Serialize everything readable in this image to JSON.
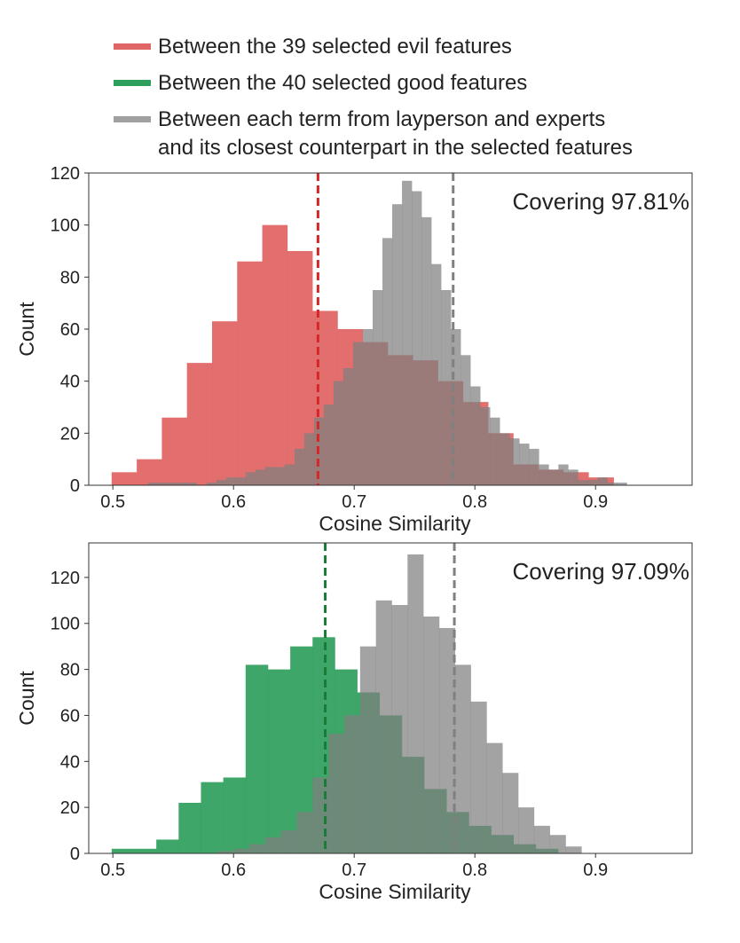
{
  "legend": {
    "items": [
      {
        "lines": [
          "Between the 39 selected evil features"
        ],
        "color": "#e06666"
      },
      {
        "lines": [
          "Between the 40 selected good features"
        ],
        "color": "#2e9e5b"
      },
      {
        "lines": [
          "Between each term from layperson and experts",
          "and its closest counterpart in the selected features"
        ],
        "color": "#a0a0a0"
      }
    ]
  },
  "chart_data": [
    {
      "type": "histogram",
      "xlabel": "Cosine Similarity",
      "ylabel": "Count",
      "xlim": [
        0.48,
        0.98
      ],
      "ylim": [
        0,
        120
      ],
      "xticks": [
        0.5,
        0.6,
        0.7,
        0.8,
        0.9
      ],
      "xtick_labels": [
        "0.5",
        "0.6",
        "0.7",
        "0.8",
        "0.9"
      ],
      "yticks": [
        0,
        20,
        40,
        60,
        80,
        100,
        120
      ],
      "ytick_labels": [
        "0",
        "20",
        "40",
        "60",
        "80",
        "100",
        "120"
      ],
      "annotation": "Covering 97.81%",
      "series": [
        {
          "color": "#e06666",
          "opacity": 0.95,
          "bin_start": 0.499,
          "bin_width": 0.0208,
          "counts": [
            5,
            10,
            26,
            47,
            63,
            86,
            100,
            90,
            67,
            60,
            55,
            50,
            48,
            40,
            32,
            20,
            8,
            6,
            5,
            3
          ],
          "mean_line": 0.67,
          "mean_color": "#d62728"
        },
        {
          "color": "#808080",
          "opacity": 0.72,
          "bin_start": 0.529,
          "bin_width": 0.0081,
          "counts": [
            1,
            1,
            1,
            1,
            1,
            0,
            1,
            2,
            3,
            3,
            5,
            6,
            7,
            7,
            8,
            14,
            20,
            26,
            31,
            40,
            45,
            55,
            60,
            75,
            95,
            108,
            117,
            113,
            103,
            85,
            75,
            60,
            50,
            38,
            30,
            26,
            20,
            18,
            16,
            14,
            8,
            6,
            8,
            6,
            2,
            2,
            3,
            1,
            1
          ],
          "mean_line": 0.782,
          "mean_color": "#808080"
        }
      ]
    },
    {
      "type": "histogram",
      "xlabel": "Cosine Similarity",
      "ylabel": "Count",
      "xlim": [
        0.48,
        0.98
      ],
      "ylim": [
        0,
        135
      ],
      "xticks": [
        0.5,
        0.6,
        0.7,
        0.8,
        0.9
      ],
      "xtick_labels": [
        "0.5",
        "0.6",
        "0.7",
        "0.8",
        "0.9"
      ],
      "yticks": [
        0,
        20,
        40,
        60,
        80,
        100,
        120
      ],
      "ytick_labels": [
        "0",
        "20",
        "40",
        "60",
        "80",
        "100",
        "120"
      ],
      "annotation": "Covering 97.09%",
      "series": [
        {
          "color": "#2e9e5b",
          "opacity": 0.92,
          "bin_start": 0.499,
          "bin_width": 0.0185,
          "counts": [
            2,
            2,
            6,
            22,
            31,
            33,
            82,
            80,
            90,
            94,
            80,
            70,
            60,
            42,
            28,
            18,
            12,
            8,
            4,
            2
          ],
          "mean_line": 0.676,
          "mean_color": "#1a7a3a"
        },
        {
          "color": "#808080",
          "opacity": 0.72,
          "bin_start": 0.587,
          "bin_width": 0.0131,
          "counts": [
            1,
            2,
            4,
            7,
            10,
            18,
            33,
            52,
            60,
            90,
            110,
            108,
            130,
            103,
            98,
            82,
            66,
            48,
            35,
            20,
            12,
            8,
            3
          ],
          "mean_line": 0.783,
          "mean_color": "#808080"
        }
      ]
    }
  ]
}
